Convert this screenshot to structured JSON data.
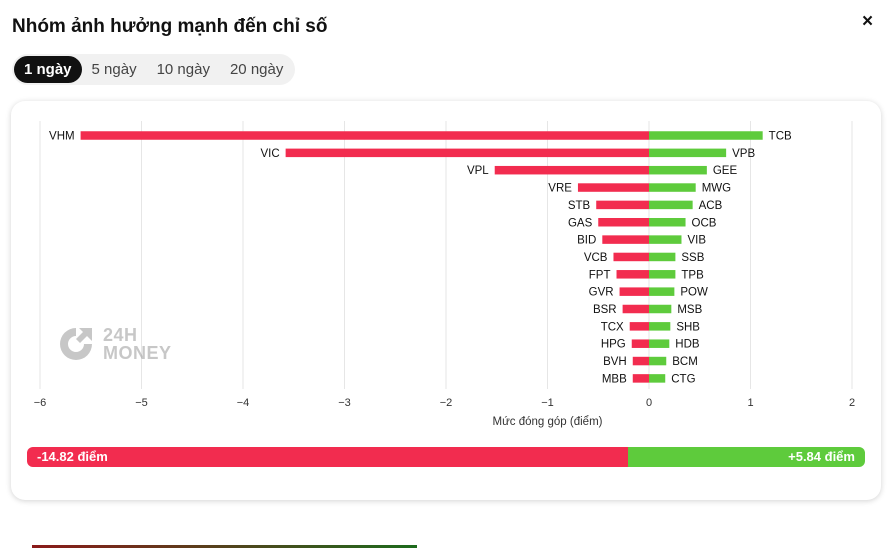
{
  "header": {
    "title": "Nhóm ảnh hưởng mạnh đến chỉ số",
    "close_symbol": "×"
  },
  "tabs": [
    {
      "label": "1 ngày",
      "active": true
    },
    {
      "label": "5 ngày",
      "active": false
    },
    {
      "label": "10 ngày",
      "active": false
    },
    {
      "label": "20 ngày",
      "active": false
    }
  ],
  "watermark": {
    "line1": "24H",
    "line2": "MONEY"
  },
  "colors": {
    "negative": "#f22c4f",
    "positive": "#5ecb3c"
  },
  "chart_data": {
    "type": "bar",
    "orientation": "horizontal",
    "xlabel": "Mức đóng góp (điểm)",
    "xlim": [
      -6,
      2
    ],
    "xticks": [
      -6,
      -5,
      -4,
      -3,
      -2,
      -1,
      0,
      1,
      2
    ],
    "grid": true,
    "series": [
      {
        "categories": [
          "VHM",
          "VIC",
          "VPL",
          "VRE",
          "STB",
          "GAS",
          "BID",
          "VCB",
          "FPT",
          "GVR",
          "BSR",
          "TCX",
          "HPG",
          "BVH",
          "MBB"
        ],
        "values": [
          -5.6,
          -3.58,
          -1.52,
          -0.7,
          -0.52,
          -0.5,
          -0.46,
          -0.35,
          -0.32,
          -0.29,
          -0.26,
          -0.19,
          -0.17,
          -0.16,
          -0.16
        ]
      },
      {
        "categories": [
          "TCB",
          "VPB",
          "GEE",
          "MWG",
          "ACB",
          "OCB",
          "VIB",
          "SSB",
          "TPB",
          "POW",
          "MSB",
          "SHB",
          "HDB",
          "BCM",
          "CTG"
        ],
        "values": [
          1.12,
          0.76,
          0.57,
          0.46,
          0.43,
          0.36,
          0.32,
          0.26,
          0.26,
          0.25,
          0.22,
          0.21,
          0.2,
          0.17,
          0.16
        ]
      }
    ]
  },
  "summary": {
    "negative_label": "-14.82 điểm",
    "positive_label": "+5.84 điểm",
    "negative_value": -14.82,
    "positive_value": 5.84
  }
}
